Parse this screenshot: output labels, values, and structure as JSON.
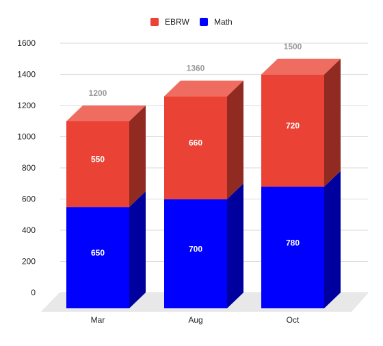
{
  "chart_data": {
    "type": "bar",
    "stacked": true,
    "style": "3d",
    "categories": [
      "Mar",
      "Aug",
      "Oct"
    ],
    "series": [
      {
        "name": "Math",
        "values": [
          650,
          700,
          780
        ],
        "color": "#0000ff"
      },
      {
        "name": "EBRW",
        "values": [
          550,
          660,
          720
        ],
        "color": "#ea4335"
      }
    ],
    "totals": [
      1200,
      1360,
      1500
    ],
    "yticks": [
      0,
      200,
      400,
      600,
      800,
      1000,
      1200,
      1400,
      1600
    ],
    "ylim": [
      0,
      1600
    ],
    "grid": true,
    "legend": "top-center",
    "legend_order": [
      "EBRW",
      "Math"
    ]
  }
}
